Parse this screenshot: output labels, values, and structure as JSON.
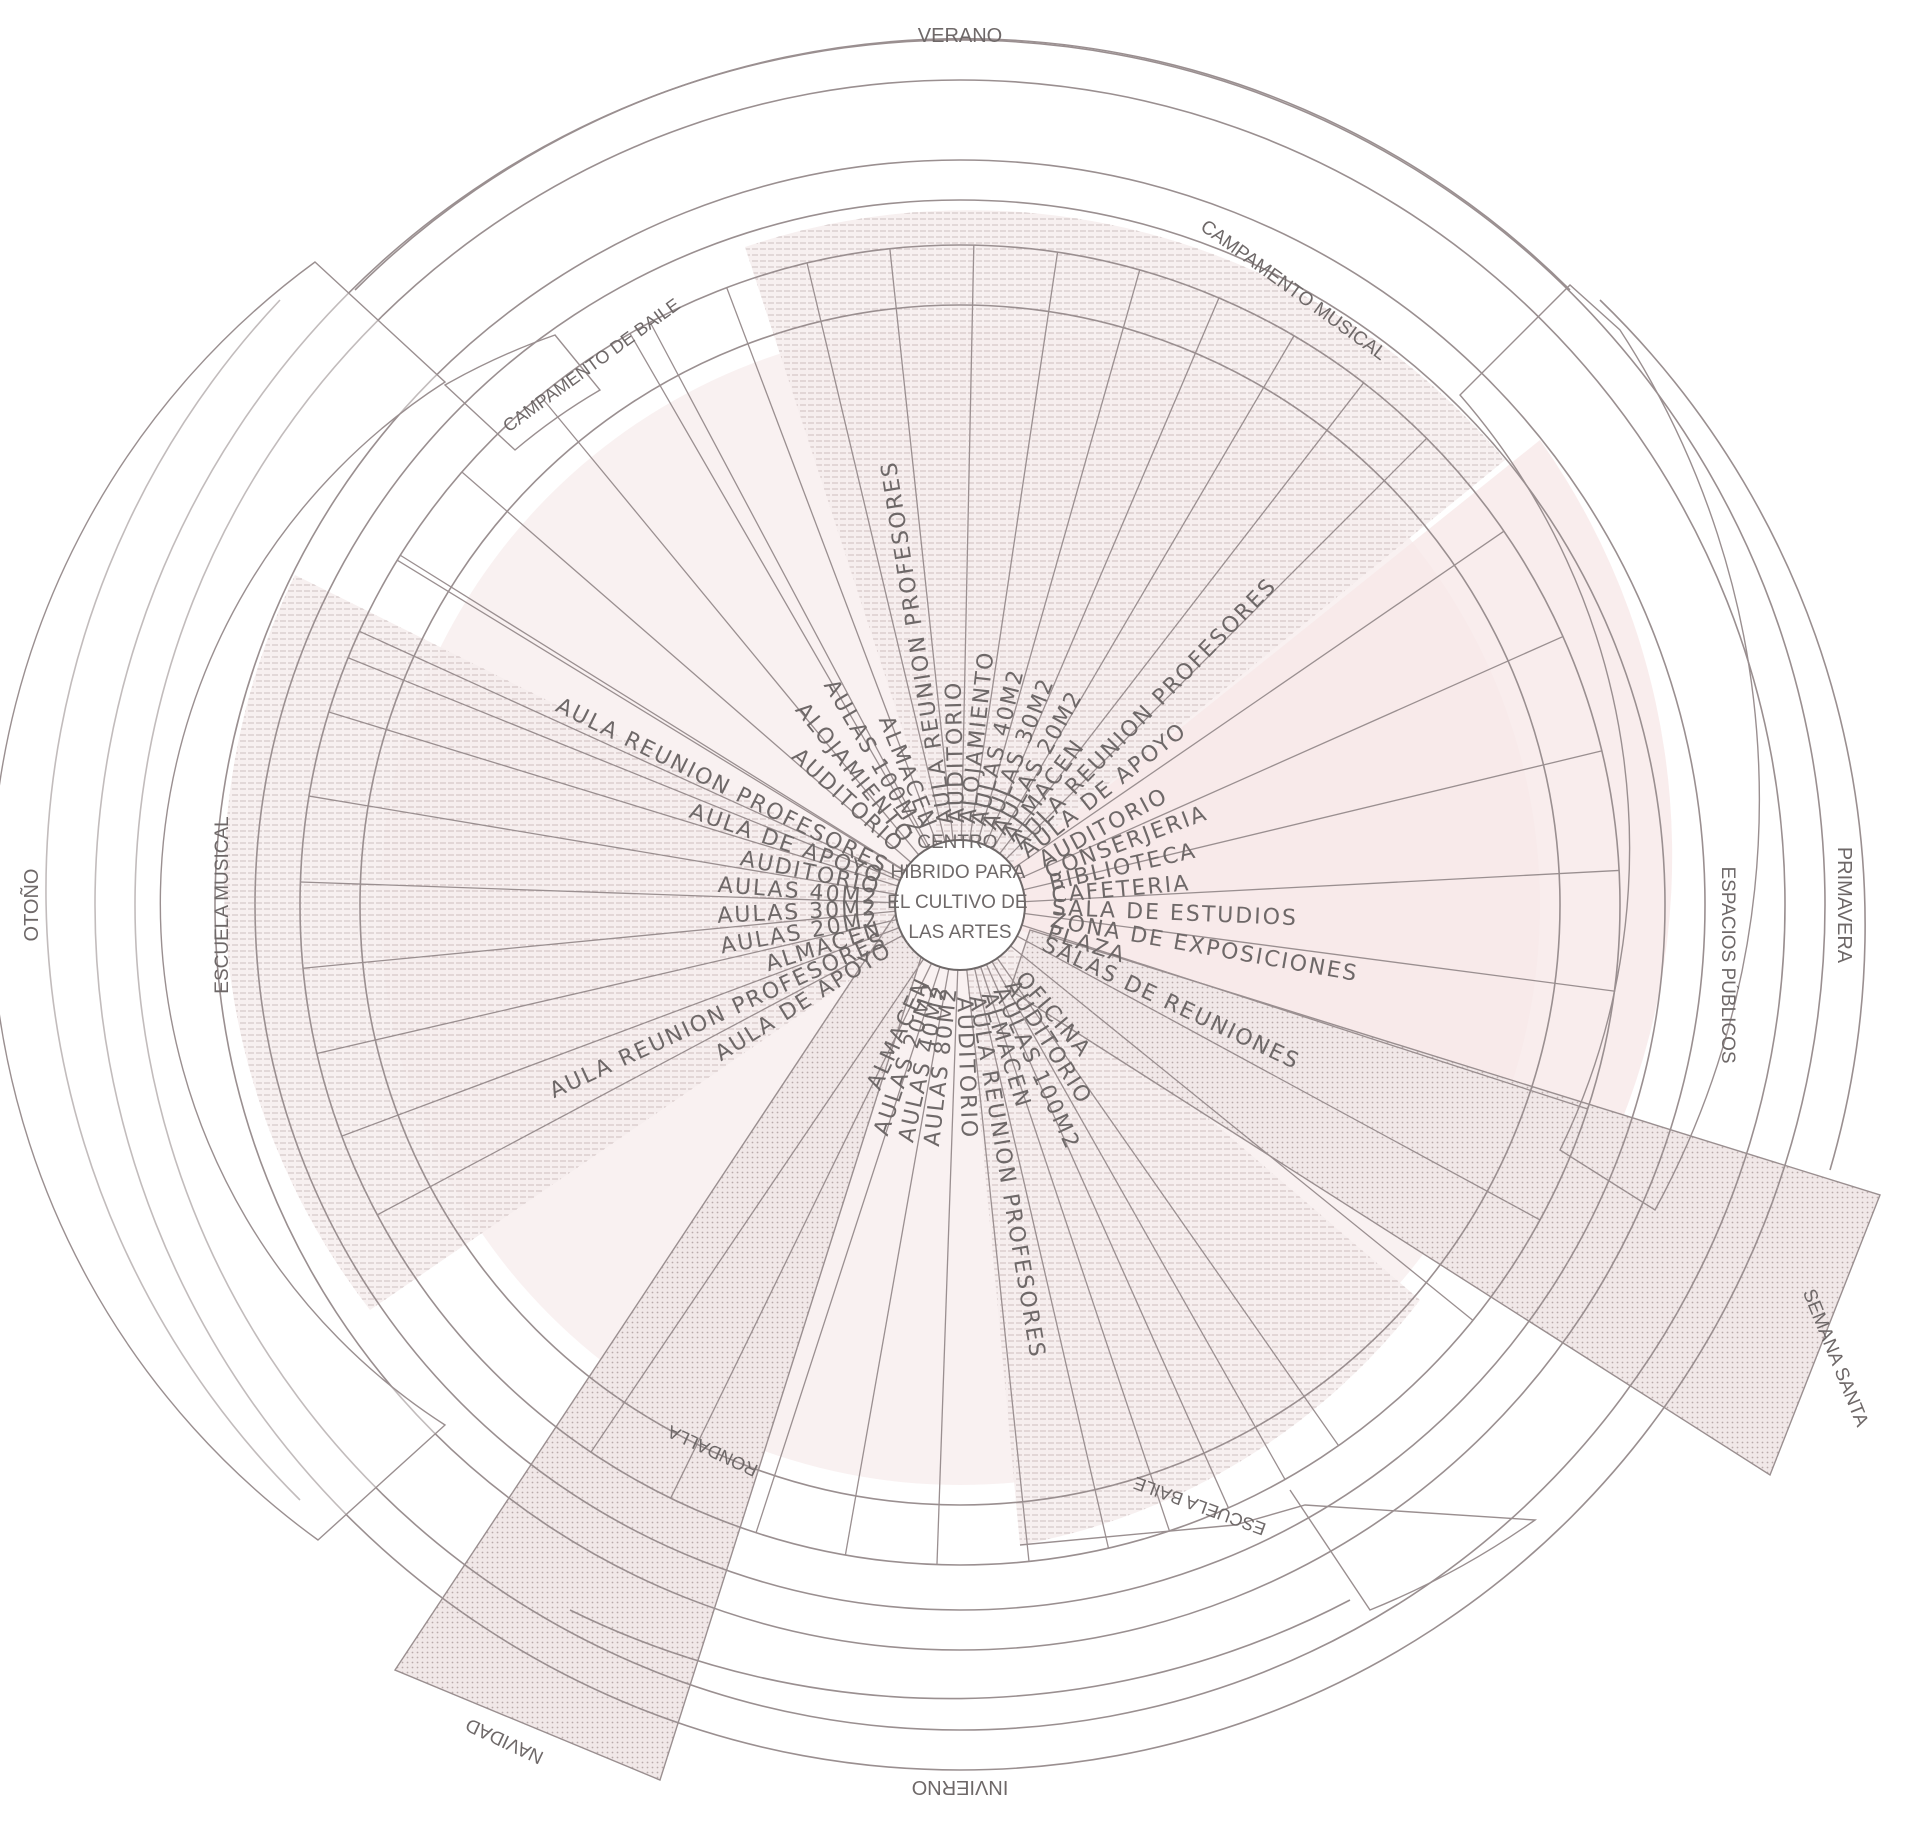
{
  "center": {
    "lines": [
      "CENTRO",
      "HIBRIDO PARA",
      "EL CULTIVO DE",
      "LAS ARTES"
    ]
  },
  "seasons": [
    {
      "id": "verano",
      "label": "VERANO"
    },
    {
      "id": "primavera",
      "label": "PRIMAVERA"
    },
    {
      "id": "invierno",
      "label": "INVIERNO"
    },
    {
      "id": "otono",
      "label": "OTOÑO"
    }
  ],
  "programs": [
    {
      "id": "campamento-musical",
      "label": "CAMPAMENTO MUSICAL"
    },
    {
      "id": "campamento-baile",
      "label": "CAMPAMENTO DE BAILE"
    },
    {
      "id": "espacios-publicos",
      "label": "ESPACIOS PÚBLICOS"
    },
    {
      "id": "escuela-musical",
      "label": "ESCUELA MUSICAL"
    },
    {
      "id": "escuela-baile",
      "label": "ESCUELA BAILE"
    },
    {
      "id": "semana-santa",
      "label": "SEMANA SANTA"
    },
    {
      "id": "navidad",
      "label": "NAVIDAD"
    },
    {
      "id": "rondalla",
      "label": "RONDALLA"
    }
  ],
  "rooms": {
    "campamento_musical": [
      "AULA REUNION PROFESORES",
      "AUDITORIO",
      "ALOJAMIENTO",
      "AULAS 40M2",
      "AULAS 30M2",
      "AULAS 20M2",
      "ALMACEN",
      "AULA REUNION PROFESORES",
      "AULA DE APOYO"
    ],
    "campamento_baile": [
      "ALMACEN",
      "AULAS 100M2",
      "ALOJAMIENTO",
      "AUDITORIO"
    ],
    "escuela_musical": [
      "AULA DE APOYO",
      "AULA REUNION PROFESORES",
      "ALMACEN",
      "AULAS 20M2",
      "AULAS 30M2",
      "AULAS 40M2",
      "AUDITORIO",
      "AULA DE APOYO",
      "AULA REUNION PROFESORES"
    ],
    "espacios_publicos": [
      "AUDITORIO",
      "CONSERJERIA",
      "BIBLIOTECA",
      "CAFETERIA",
      "SALA DE ESTUDIOS",
      "ZONA DE EXPOSICIONES",
      "PLAZA",
      "SALAS DE REUNIONES"
    ],
    "escuela_baile": [
      "OFICINA",
      "AUDITORIO",
      "AULAS 100M2",
      "ALMACEN",
      "AULA REUNION PROFESORES",
      "AUDITORIO"
    ],
    "rondalla": [
      "ALMACEN",
      "AULAS 20M2",
      "AULAS 40M2",
      "AULAS 80M2"
    ]
  },
  "colors": {
    "line": "#9a8f90",
    "text": "#6e6868",
    "pink_fill": "#f8eeee",
    "hatch": "#c9b9b9"
  }
}
